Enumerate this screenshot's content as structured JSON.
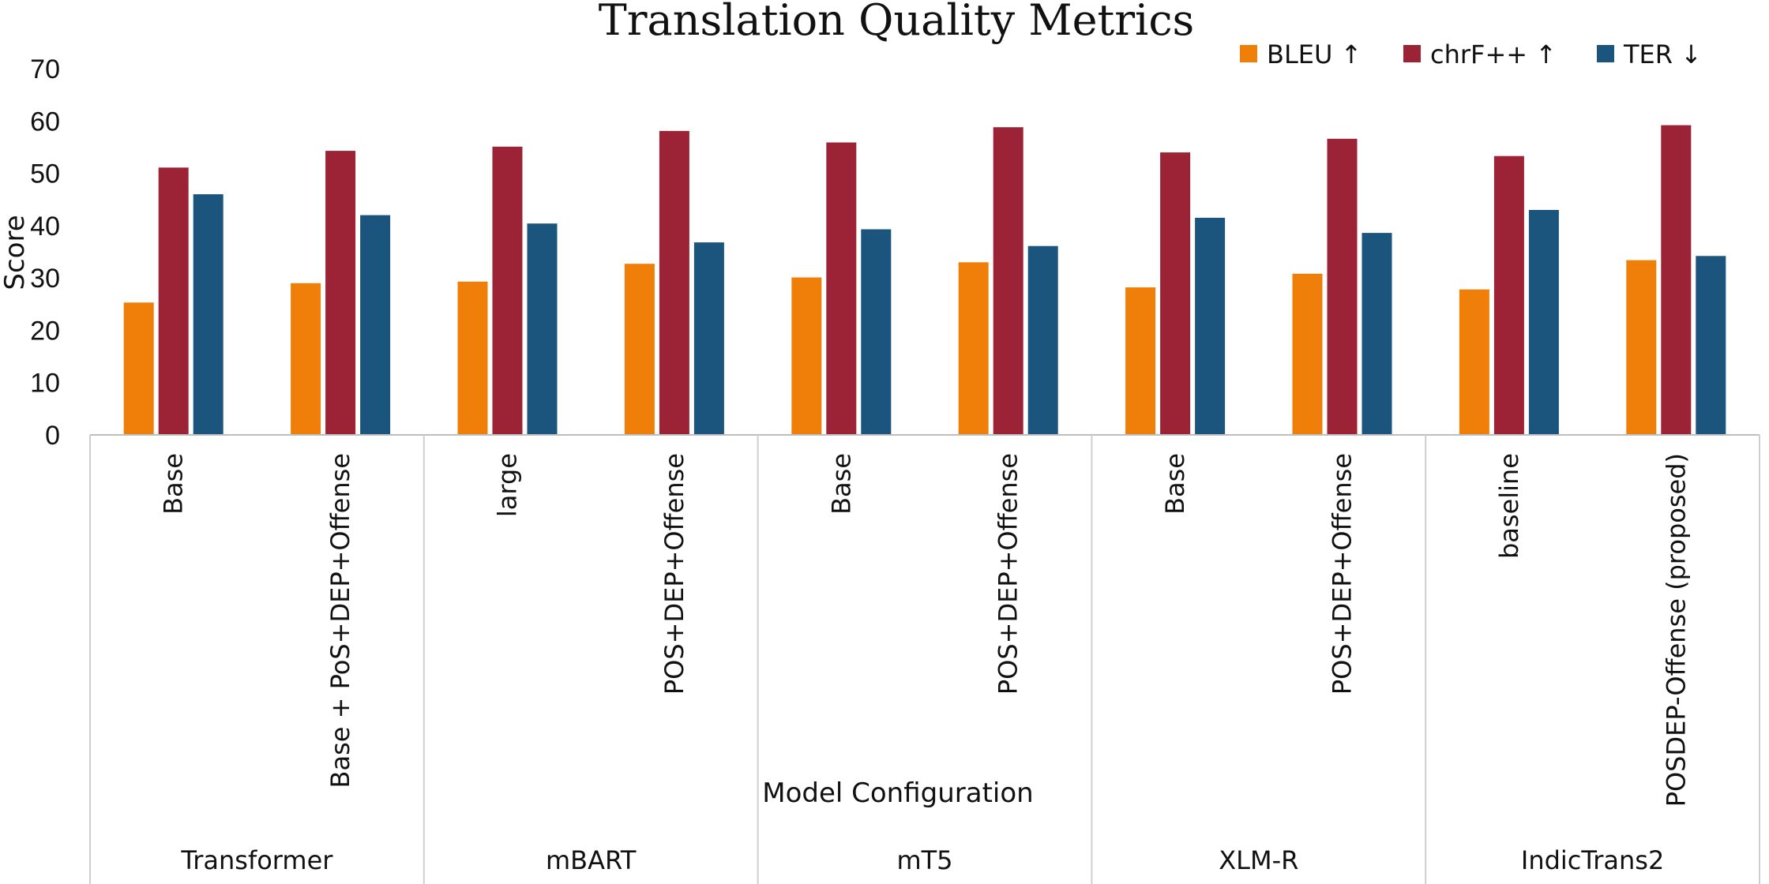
{
  "chart_data": {
    "type": "bar",
    "title": "Translation Quality Metrics",
    "xlabel": "Model Configuration",
    "ylabel": "Score",
    "ylim": [
      0,
      70
    ],
    "yticks": [
      0,
      10,
      20,
      30,
      40,
      50,
      60,
      70
    ],
    "grid": false,
    "legend_position": "top-right",
    "groups": [
      {
        "name": "Transformer",
        "categories": [
          "Base",
          "Base + PoS+DEP+Offense"
        ]
      },
      {
        "name": "mBART",
        "categories": [
          "large",
          "POS+DEP+Offense"
        ]
      },
      {
        "name": "mT5",
        "categories": [
          "Base",
          "POS+DEP+Offense"
        ]
      },
      {
        "name": "XLM-R",
        "categories": [
          "Base",
          "POS+DEP+Offense"
        ]
      },
      {
        "name": "IndicTrans2",
        "categories": [
          "baseline",
          "POSDEP-Offense (proposed)"
        ]
      }
    ],
    "series": [
      {
        "name": "BLEU ↑",
        "color": "#F07F0A",
        "values": [
          25.3,
          29.0,
          29.3,
          32.7,
          30.1,
          33.0,
          28.2,
          30.8,
          27.8,
          33.4
        ]
      },
      {
        "name": "chrF++ ↑",
        "color": "#9B2335",
        "values": [
          51.1,
          54.3,
          55.1,
          58.1,
          55.9,
          58.8,
          54.0,
          56.6,
          53.3,
          59.2
        ]
      },
      {
        "name": "TER ↓",
        "color": "#1B557D",
        "values": [
          46.0,
          42.0,
          40.4,
          36.8,
          39.3,
          36.1,
          41.5,
          38.6,
          43.0,
          34.2
        ]
      }
    ]
  }
}
